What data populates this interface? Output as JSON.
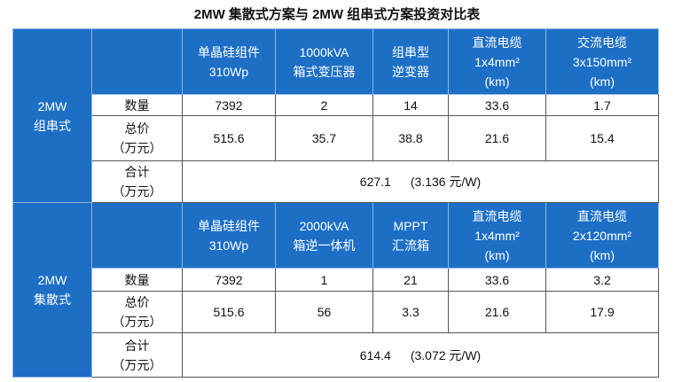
{
  "title": "2MW 集散式方案与 2MW 组串式方案投资对比表",
  "sections": [
    {
      "group": [
        "2MW",
        "组串式"
      ],
      "headers": [
        [
          "单晶硅组件",
          "310Wp"
        ],
        [
          "1000kVA",
          "箱式变压器"
        ],
        [
          "组串型",
          "逆变器"
        ],
        [
          "直流电缆",
          "1x4mm²",
          "(km)"
        ],
        [
          "交流电缆",
          "3x150mm²",
          "(km)"
        ]
      ],
      "rows": [
        {
          "label": [
            "数量"
          ],
          "values": [
            7392,
            2,
            14,
            33.6,
            1.7
          ]
        },
        {
          "label": [
            "总价",
            "（万元）"
          ],
          "values": [
            515.6,
            35.7,
            38.8,
            21.6,
            15.4
          ]
        }
      ],
      "total": {
        "label": [
          "合计",
          "（万元）"
        ],
        "value": 627.1,
        "note": "(3.136 元/W)"
      }
    },
    {
      "group": [
        "2MW",
        "集散式"
      ],
      "headers": [
        [
          "单晶硅组件",
          "310Wp"
        ],
        [
          "2000kVA",
          "箱逆一体机"
        ],
        [
          "MPPT",
          "汇流箱"
        ],
        [
          "直流电缆",
          "1x4mm²",
          "(km)"
        ],
        [
          "直流电缆",
          "2x120mm²",
          "(km)"
        ]
      ],
      "rows": [
        {
          "label": [
            "数量"
          ],
          "values": [
            7392,
            1,
            21,
            33.6,
            3.2
          ]
        },
        {
          "label": [
            "总价",
            "（万元）"
          ],
          "values": [
            515.6,
            56,
            3.3,
            21.6,
            17.9
          ]
        }
      ],
      "total": {
        "label": [
          "合计",
          "（万元）"
        ],
        "value": 614.4,
        "note": "(3.072 元/W)"
      }
    }
  ]
}
